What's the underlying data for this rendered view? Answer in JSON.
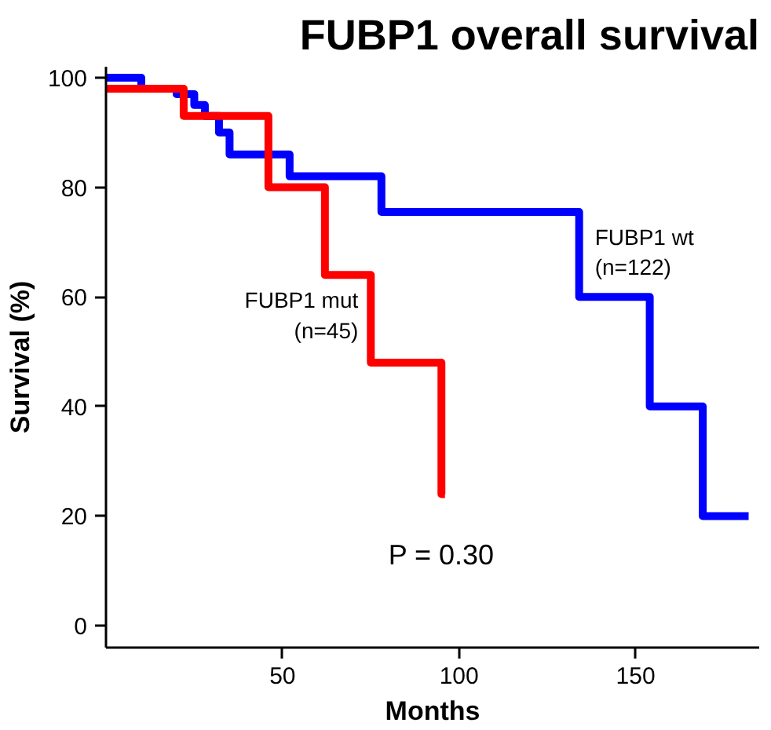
{
  "chart_data": {
    "type": "step",
    "title": "FUBP1 overall survival",
    "xlabel": "Months",
    "ylabel": "Survival (%)",
    "xlim": [
      0,
      185
    ],
    "ylim": [
      -4,
      102
    ],
    "xticks": [
      50,
      100,
      150
    ],
    "yticks": [
      0,
      20,
      40,
      60,
      80,
      100
    ],
    "grid": false,
    "legend": false,
    "line_style": "solid",
    "series": [
      {
        "name": "FUBP1 wt\n(n=122)",
        "color": "#0000ff",
        "x": [
          0,
          10,
          20,
          25,
          28,
          32,
          35,
          52,
          78,
          134,
          154,
          169,
          182
        ],
        "values": [
          100,
          98,
          97,
          95,
          93,
          90,
          86,
          82,
          75.5,
          60,
          40,
          20,
          20
        ]
      },
      {
        "name": "FUBP1 mut\n(n=45)",
        "color": "#ff0000",
        "x": [
          0,
          22,
          46,
          62,
          75,
          95,
          96
        ],
        "values": [
          98,
          93,
          80,
          64,
          48,
          24,
          24
        ]
      }
    ],
    "annotations": [
      "P = 0.30"
    ]
  }
}
